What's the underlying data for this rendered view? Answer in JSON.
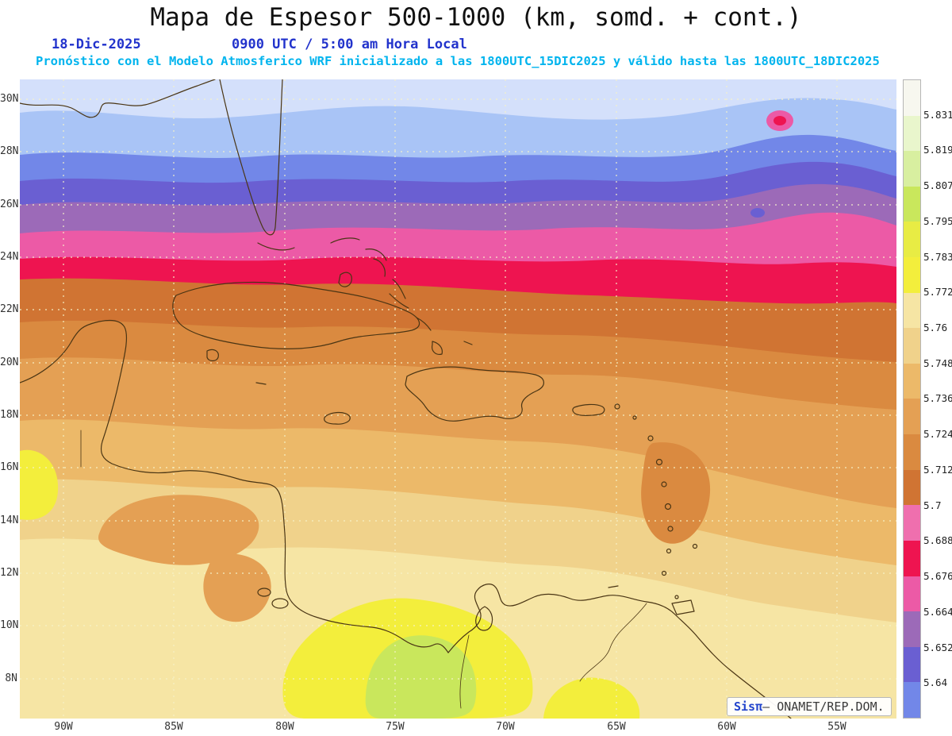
{
  "header": {
    "title": "Mapa de Espesor 500-1000 (km, somd. + cont.)",
    "date": "18-Dic-2025",
    "time": "0900 UTC / 5:00 am Hora Local",
    "forecast": "Pronóstico con el Modelo Atmosferico WRF inicializado a las 1800UTC_15DIC2025 y válido hasta las  1800UTC_18DIC2025",
    "title_color": "#111111",
    "date_color": "#2233cc",
    "forecast_color": "#00b4ee"
  },
  "map": {
    "lat_labels": [
      "30N",
      "28N",
      "26N",
      "24N",
      "22N",
      "20N",
      "18N",
      "16N",
      "14N",
      "12N",
      "10N",
      "8N"
    ],
    "lon_labels": [
      "90W",
      "85W",
      "80W",
      "75W",
      "70W",
      "65W",
      "60W",
      "55W"
    ],
    "extra_blues": [
      "#a9c4f6",
      "#d4e0fb"
    ],
    "grid_color": "#f5f2c8",
    "coast_color": "#4a3514"
  },
  "colorbar": {
    "labels": [
      "5.831",
      "5.819",
      "5.807",
      "5.795",
      "5.783",
      "5.772",
      "5.76",
      "5.748",
      "5.736",
      "5.724",
      "5.712",
      "5.7",
      "5.688",
      "5.676",
      "5.664",
      "5.652",
      "5.64"
    ],
    "colors": [
      "#f7f7ef",
      "#e9f6cc",
      "#d8efa0",
      "#c9e75c",
      "#e8ec44",
      "#f3ee3c",
      "#f6e5a4",
      "#f0d28b",
      "#ecb969",
      "#e4a054",
      "#da8a40",
      "#d07433",
      "#ef6fae",
      "#ee1450",
      "#ec5aa6",
      "#9c6ab8",
      "#6a5fd2",
      "#7287e8"
    ],
    "brand_blue": "#2244cc"
  },
  "watermark": {
    "brand": "Sis",
    "symbol": "π",
    "separator": "–",
    "org": "ONAMET/REP.DOM."
  },
  "chart_data": {
    "type": "heatmap",
    "title": "Mapa de Espesor 500-1000 (km, somd. + cont.)",
    "variable": "Espesor 500-1000",
    "units": "km",
    "model": "WRF",
    "init": "1800UTC_15DIC2025",
    "valid": "1800UTC_18DIC2025",
    "levels": [
      5.64,
      5.652,
      5.664,
      5.676,
      5.688,
      5.7,
      5.712,
      5.724,
      5.736,
      5.748,
      5.76,
      5.772,
      5.783,
      5.795,
      5.807,
      5.819,
      5.831
    ],
    "x_ticks": [
      "90W",
      "85W",
      "80W",
      "75W",
      "70W",
      "65W",
      "60W",
      "55W"
    ],
    "y_ticks": [
      "30N",
      "28N",
      "26N",
      "24N",
      "22N",
      "20N",
      "18N",
      "16N",
      "14N",
      "12N",
      "10N",
      "8N"
    ],
    "legend_position": "right",
    "grid": true,
    "pattern": "thickness decreases from south (yellow-green, ~5.78-5.81 km over Colombia/Venezuela) to north (blue, <5.64 km north of 27N); red band 5.676-5.7 near 23-24N; closed low spot near 57W 29N"
  }
}
